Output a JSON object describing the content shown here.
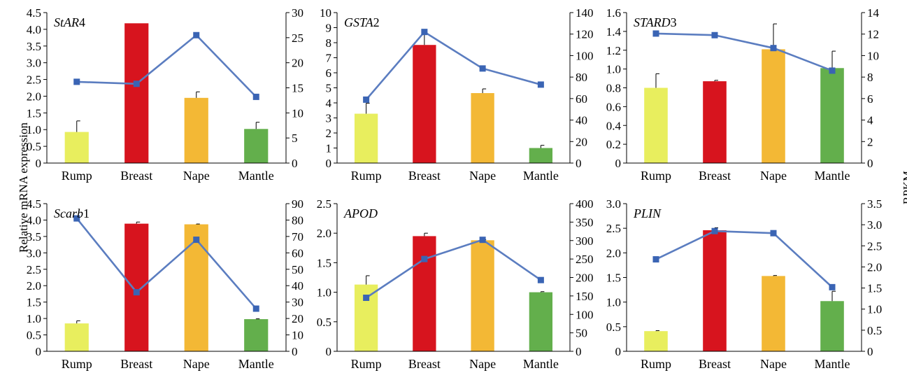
{
  "colors": {
    "bar_colors": [
      "#E8EE5E",
      "#D7141E",
      "#F3B835",
      "#63AF4C"
    ],
    "line": "#5B7DC0",
    "marker": "#3A64B4",
    "axis": "#000000"
  },
  "figure": {
    "ylabel_left": "Relative mRNA expression",
    "ylabel_right": "RPKM"
  },
  "chart_data": [
    {
      "type": "bar+line",
      "title": "StAR4",
      "title_italic": "StAR",
      "title_plain": "4",
      "categories": [
        "Rump",
        "Breast",
        "Nape",
        "Mantle"
      ],
      "bar_values": [
        0.93,
        4.18,
        1.95,
        1.02
      ],
      "bar_errors": [
        0.33,
        0.0,
        0.18,
        0.2
      ],
      "left_ylim": [
        0,
        4.5
      ],
      "left_ticks": [
        "0",
        "0.5",
        "1.0",
        "1.5",
        "2.0",
        "2.5",
        "3.0",
        "3.5",
        "4.0",
        "4.5"
      ],
      "line_values": [
        16.2,
        15.8,
        25.5,
        13.2
      ],
      "right_ylim": [
        0,
        30
      ],
      "right_ticks": [
        "0",
        "5",
        "10",
        "15",
        "20",
        "25",
        "30"
      ]
    },
    {
      "type": "bar+line",
      "title": "GSTA2",
      "title_italic": "GSTA",
      "title_plain": "2",
      "categories": [
        "Rump",
        "Breast",
        "Nape",
        "Mantle"
      ],
      "bar_values": [
        3.28,
        7.85,
        4.65,
        1.0
      ],
      "bar_errors": [
        0.7,
        0.75,
        0.28,
        0.18
      ],
      "left_ylim": [
        0,
        10
      ],
      "left_ticks": [
        "0",
        "1",
        "2",
        "3",
        "4",
        "5",
        "6",
        "7",
        "8",
        "9",
        "10"
      ],
      "line_values": [
        59,
        122,
        88,
        73
      ],
      "right_ylim": [
        0,
        140
      ],
      "right_ticks": [
        "0",
        "20",
        "40",
        "60",
        "80",
        "100",
        "120",
        "140"
      ]
    },
    {
      "type": "bar+line",
      "title": "STARD3",
      "title_italic": "STARD",
      "title_plain": "3",
      "categories": [
        "Rump",
        "Breast",
        "Nape",
        "Mantle"
      ],
      "bar_values": [
        0.8,
        0.87,
        1.21,
        1.01
      ],
      "bar_errors": [
        0.15,
        0.01,
        0.27,
        0.18
      ],
      "left_ylim": [
        0,
        1.6
      ],
      "left_ticks": [
        "0",
        "0.2",
        "0.4",
        "0.6",
        "0.8",
        "1.0",
        "1.2",
        "1.4",
        "1.6"
      ],
      "line_values": [
        12.05,
        11.9,
        10.7,
        8.6
      ],
      "right_ylim": [
        0,
        14
      ],
      "right_ticks": [
        "0",
        "2",
        "4",
        "6",
        "8",
        "10",
        "12",
        "14"
      ]
    },
    {
      "type": "bar+line",
      "title": "Scarb1",
      "title_italic": "Scarb",
      "title_plain": "1",
      "categories": [
        "Rump",
        "Breast",
        "Nape",
        "Mantle"
      ],
      "bar_values": [
        0.85,
        3.89,
        3.87,
        0.98
      ],
      "bar_errors": [
        0.08,
        0.05,
        0.01,
        0.01
      ],
      "left_ylim": [
        0,
        4.5
      ],
      "left_ticks": [
        "0",
        "0.5",
        "1.0",
        "1.5",
        "2.0",
        "2.5",
        "3.0",
        "3.5",
        "4.0",
        "4.5"
      ],
      "line_values": [
        81,
        36,
        68,
        26
      ],
      "right_ylim": [
        0,
        90
      ],
      "right_ticks": [
        "0",
        "10",
        "20",
        "30",
        "40",
        "50",
        "60",
        "70",
        "80",
        "90"
      ]
    },
    {
      "type": "bar+line",
      "title": "APOD",
      "title_italic": "APOD",
      "title_plain": "",
      "categories": [
        "Rump",
        "Breast",
        "Nape",
        "Mantle"
      ],
      "bar_values": [
        1.13,
        1.95,
        1.88,
        1.0
      ],
      "bar_errors": [
        0.15,
        0.05,
        0.01,
        0.01
      ],
      "left_ylim": [
        0,
        2.5
      ],
      "left_ticks": [
        "0",
        "0.5",
        "1.0",
        "1.5",
        "2.0",
        "2.5"
      ],
      "line_values": [
        145,
        250,
        302,
        193
      ],
      "right_ylim": [
        0,
        400
      ],
      "right_ticks": [
        "0",
        "50",
        "100",
        "150",
        "200",
        "250",
        "300",
        "350",
        "400"
      ]
    },
    {
      "type": "bar+line",
      "title": "PLIN",
      "title_italic": "PLIN",
      "title_plain": "",
      "categories": [
        "Rump",
        "Breast",
        "Nape",
        "Mantle"
      ],
      "bar_values": [
        0.41,
        2.46,
        1.53,
        1.02
      ],
      "bar_errors": [
        0.01,
        0.05,
        0.01,
        0.2
      ],
      "left_ylim": [
        0,
        3.0
      ],
      "left_ticks": [
        "0",
        "0.5",
        "1.0",
        "1.5",
        "2.0",
        "2.5",
        "3.0"
      ],
      "line_values": [
        2.18,
        2.85,
        2.8,
        1.52
      ],
      "right_ylim": [
        0,
        3.5
      ],
      "right_ticks": [
        "0",
        "0.5",
        "1.0",
        "1.5",
        "2.0",
        "2.5",
        "3.0",
        "3.5"
      ]
    }
  ]
}
